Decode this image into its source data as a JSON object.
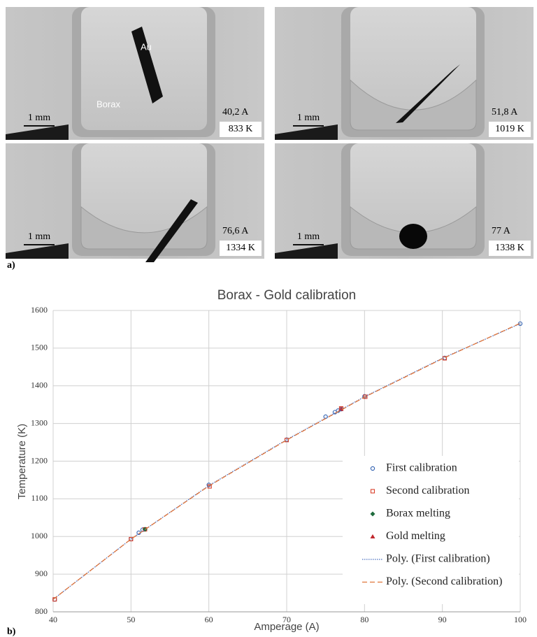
{
  "panels": [
    {
      "current": "40,2 A",
      "temperature": "833 K",
      "scale": "1 mm",
      "labels": [
        "Au",
        "Borax"
      ]
    },
    {
      "current": "51,8 A",
      "temperature": "1019 K",
      "scale": "1 mm"
    },
    {
      "current": "76,6 A",
      "temperature": "1334 K",
      "scale": "1 mm"
    },
    {
      "current": "77 A",
      "temperature": "1338 K",
      "scale": "1 mm"
    }
  ],
  "panel_a_label": "a)",
  "panel_b_label": "b)",
  "chart_data": {
    "type": "scatter",
    "title": "Borax - Gold calibration",
    "x_label": "Amperage (A)",
    "y_label": "Temperature (K)",
    "xlim": [
      40,
      100
    ],
    "xticks": [
      40,
      50,
      60,
      70,
      80,
      90,
      100
    ],
    "ylim": [
      800,
      1600
    ],
    "yticks": [
      800,
      900,
      1000,
      1100,
      1200,
      1300,
      1400,
      1500,
      1600
    ],
    "grid": true,
    "legend": "lower right",
    "series": [
      {
        "name": "First calibration",
        "color": "#2e5fb0",
        "marker": "circle",
        "x": [
          40.2,
          50,
          51,
          51.5,
          51.8,
          60,
          70,
          75,
          76.2,
          76.6,
          77,
          80,
          90.3,
          100
        ],
        "values": [
          833,
          993,
          1010,
          1018,
          1019,
          1137,
          1257,
          1318,
          1330,
          1334,
          1338,
          1372,
          1474,
          1565
        ]
      },
      {
        "name": "Second calibration",
        "color": "#d9402b",
        "marker": "square",
        "x": [
          40.2,
          50,
          51.8,
          60.1,
          70,
          77,
          80.1,
          90.3
        ],
        "values": [
          833,
          993,
          1019,
          1133,
          1256,
          1340,
          1371,
          1473
        ]
      },
      {
        "name": "Borax melting",
        "color": "#1e6b3c",
        "marker": "diamond",
        "x": [
          51.8
        ],
        "values": [
          1019
        ]
      },
      {
        "name": "Gold melting",
        "color": "#c0272d",
        "marker": "triangle",
        "x": [
          77
        ],
        "values": [
          1338
        ]
      },
      {
        "name": "Poly. (First calibration)",
        "color": "#4a6fc0",
        "marker": "dotted-line",
        "x": [
          40,
          50,
          60,
          70,
          80,
          90,
          100
        ],
        "values": [
          833,
          993,
          1135,
          1257,
          1371,
          1473,
          1565
        ]
      },
      {
        "name": "Poly. (Second calibration)",
        "color": "#e0743a",
        "marker": "dashed-line",
        "x": [
          40,
          50,
          60,
          70,
          80,
          90,
          100
        ],
        "values": [
          833,
          993,
          1134,
          1256,
          1370,
          1472,
          1566
        ]
      }
    ]
  }
}
